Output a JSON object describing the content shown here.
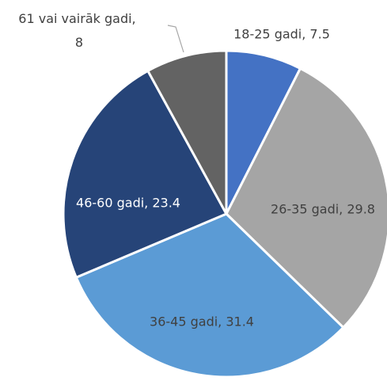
{
  "chart_data": {
    "type": "pie",
    "values": [
      7.5,
      29.8,
      31.4,
      23.4,
      8
    ],
    "value_labels": [
      "18-25 gadi, 7.5",
      "26-35 gadi, 29.8",
      "36-45 gadi, 31.4",
      "46-60 gadi, 23.4",
      "61 vai vairāk gadi, 8"
    ],
    "colors": [
      "#4472c4",
      "#a5a5a5",
      "#5b9bd5",
      "#264478",
      "#636363"
    ]
  }
}
